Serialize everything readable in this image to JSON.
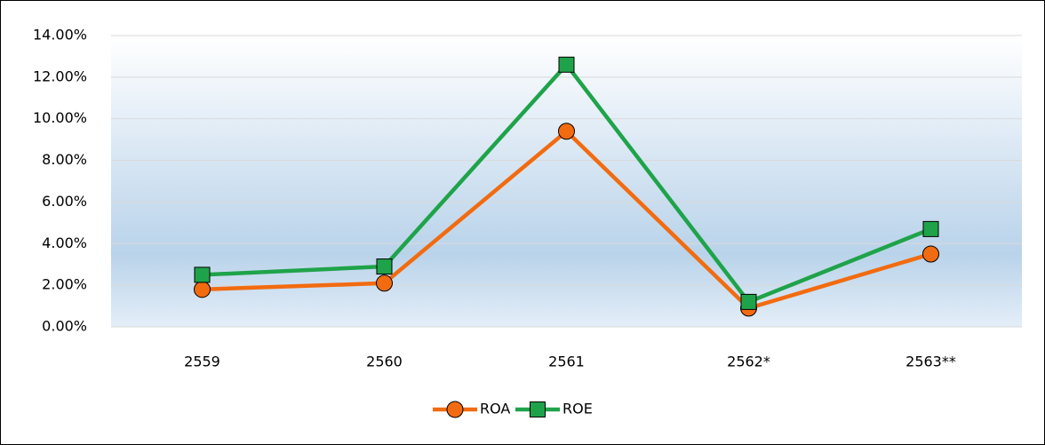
{
  "chart_data": {
    "type": "line",
    "categories": [
      "2559",
      "2560",
      "2561",
      "2562*",
      "2563**"
    ],
    "series": [
      {
        "name": "ROA",
        "color": "#f26b10",
        "marker": "circle",
        "values": [
          1.8,
          2.1,
          9.4,
          0.9,
          3.5
        ]
      },
      {
        "name": "ROE",
        "color": "#1fa34a",
        "marker": "square",
        "values": [
          2.5,
          2.9,
          12.6,
          1.2,
          4.7
        ]
      }
    ],
    "ylim": [
      0,
      14
    ],
    "yticks": [
      {
        "value": 0,
        "label": "0.00%"
      },
      {
        "value": 2,
        "label": "2.00%"
      },
      {
        "value": 4,
        "label": "4.00%"
      },
      {
        "value": 6,
        "label": "6.00%"
      },
      {
        "value": 8,
        "label": "8.00%"
      },
      {
        "value": 10,
        "label": "10.00%"
      },
      {
        "value": 12,
        "label": "12.00%"
      },
      {
        "value": 14,
        "label": "14.00%"
      }
    ],
    "grid": true,
    "legend": "bottom"
  }
}
